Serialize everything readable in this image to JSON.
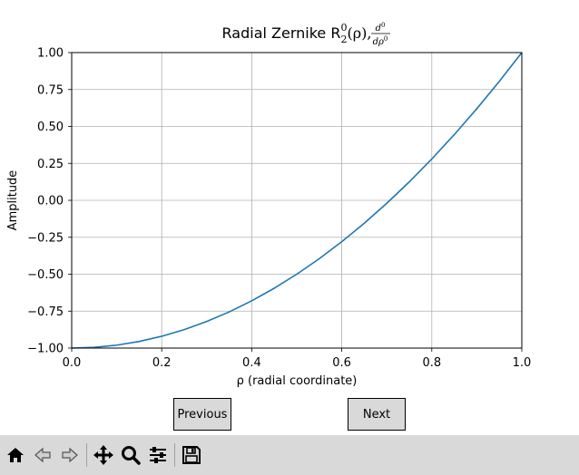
{
  "chart_data": {
    "type": "line",
    "title_plain": "Radial Zernike R",
    "title_sup": "0",
    "title_sub": "2",
    "title_rho": "(ρ), ",
    "title_frac_num": "d",
    "title_frac_num_sup": "0",
    "title_frac_den": "dρ",
    "title_frac_den_sup": "0",
    "xlabel": "ρ (radial coordinate)",
    "ylabel": "Amplitude",
    "xlim": [
      0.0,
      1.0
    ],
    "ylim": [
      -1.0,
      1.0
    ],
    "xticks": [
      0.0,
      0.2,
      0.4,
      0.6,
      0.8,
      1.0
    ],
    "xtick_labels": [
      "0.0",
      "0.2",
      "0.4",
      "0.6",
      "0.8",
      "1.0"
    ],
    "yticks": [
      -1.0,
      -0.75,
      -0.5,
      -0.25,
      0.0,
      0.25,
      0.5,
      0.75,
      1.0
    ],
    "ytick_labels": [
      "−1.00",
      "−0.75",
      "−0.50",
      "−0.25",
      "0.00",
      "0.25",
      "0.50",
      "0.75",
      "1.00"
    ],
    "grid": true,
    "series": [
      {
        "color": "#1f77b4",
        "x": [
          0.0,
          0.05,
          0.1,
          0.15,
          0.2,
          0.25,
          0.3,
          0.35,
          0.4,
          0.45,
          0.5,
          0.55,
          0.6,
          0.65,
          0.7,
          0.75,
          0.8,
          0.85,
          0.9,
          0.95,
          1.0
        ],
        "y": [
          -1.0,
          -0.995,
          -0.98,
          -0.955,
          -0.92,
          -0.875,
          -0.82,
          -0.755,
          -0.68,
          -0.595,
          -0.5,
          -0.395,
          -0.28,
          -0.155,
          -0.02,
          0.125,
          0.28,
          0.445,
          0.62,
          0.805,
          1.0
        ]
      }
    ]
  },
  "buttons": {
    "previous": "Previous",
    "next": "Next"
  },
  "toolbar": {
    "icons": [
      "home-icon",
      "back-arrow-icon",
      "forward-arrow-icon",
      "move-icon",
      "zoom-icon",
      "configure-subplots-icon",
      "save-icon"
    ]
  }
}
